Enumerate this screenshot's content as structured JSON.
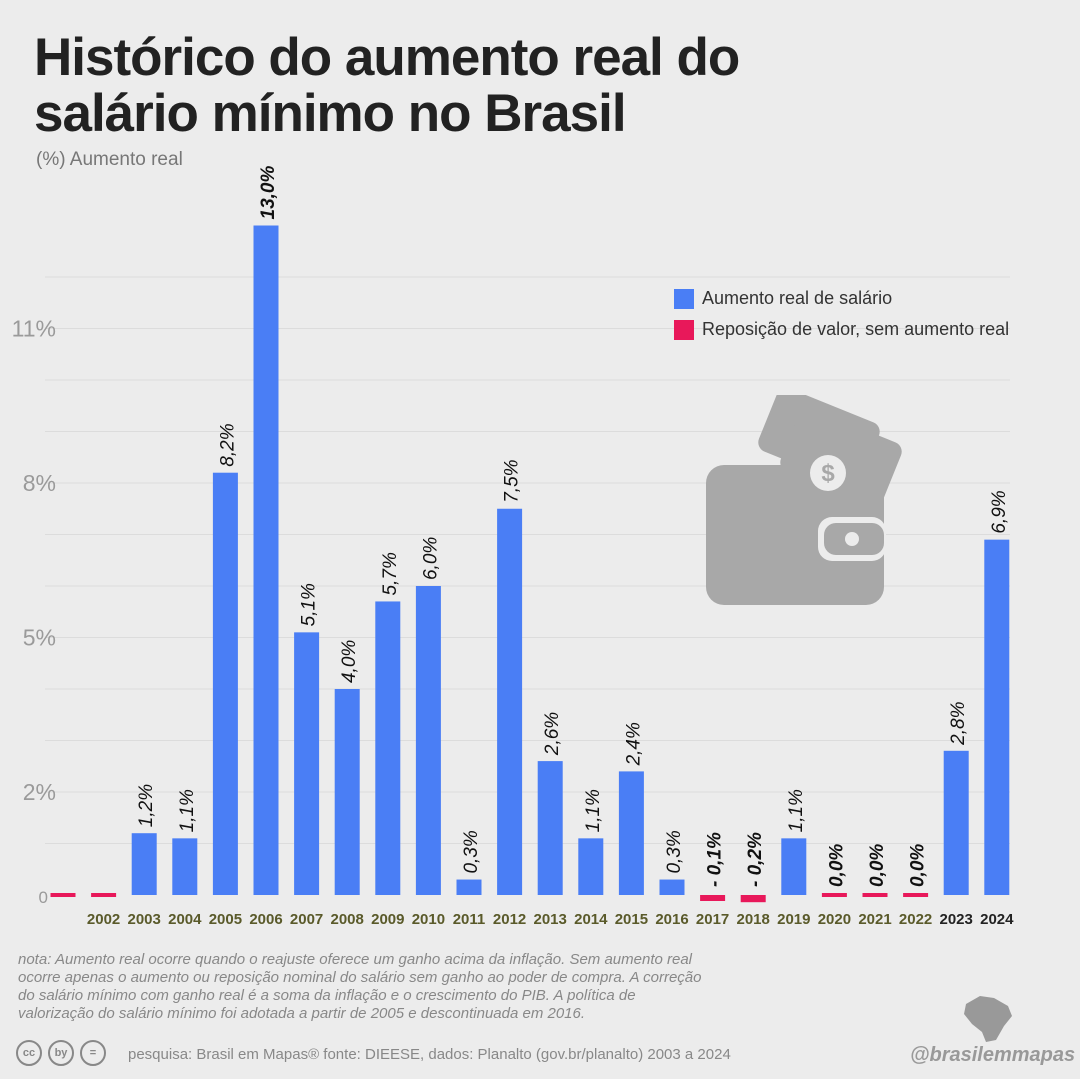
{
  "title": "Histórico do aumento real do\nsalário mínimo no Brasil",
  "subtitle": "(%) Aumento real",
  "legend": [
    {
      "label": "Aumento real de salário",
      "color": "#4a7ef5"
    },
    {
      "label": "Reposição de valor, sem aumento real",
      "color": "#e8185a"
    }
  ],
  "note": "nota: Aumento real ocorre quando o reajuste oferece um ganho acima da inflação. Sem aumento real ocorre apenas o aumento ou reposição nominal do salário sem ganho ao poder de compra. A correção do salário mínimo com ganho real é a soma da inflação e o crescimento do PIB. A política de valorização do salário mínimo foi adotada a partir de 2005 e descontinuada em 2016.",
  "source": "pesquisa: Brasil em Mapas®  fonte: DIEESE, dados: Planalto (gov.br/planalto) 2003 a 2024",
  "brand": "@brasilemmapas",
  "license": {
    "cc": "cc",
    "by": "by",
    "nd": "="
  },
  "chart_data": {
    "type": "bar",
    "categories": [
      "",
      "2002",
      "2003",
      "2004",
      "2005",
      "2006",
      "2007",
      "2008",
      "2009",
      "2010",
      "2011",
      "2012",
      "2013",
      "2014",
      "2015",
      "2016",
      "2017",
      "2018",
      "2019",
      "2020",
      "2021",
      "2022",
      "2023",
      "2024"
    ],
    "values": [
      0,
      0,
      1.2,
      1.1,
      8.2,
      13.0,
      5.1,
      4.0,
      5.7,
      6.0,
      0.3,
      7.5,
      2.6,
      1.1,
      2.4,
      0.3,
      -0.1,
      -0.2,
      1.1,
      0.0,
      0.0,
      0.0,
      2.8,
      6.9
    ],
    "labels": [
      "",
      "",
      "1,2%",
      "1,1%",
      "8,2%",
      "13,0%",
      "5,1%",
      "4,0%",
      "5,7%",
      "6,0%",
      "0,3%",
      "7,5%",
      "2,6%",
      "1,1%",
      "2,4%",
      "0,3%",
      "- 0,1%",
      "- 0,2%",
      "1,1%",
      "0,0%",
      "0,0%",
      "0,0%",
      "2,8%",
      "6,9%"
    ],
    "series_type": [
      "red",
      "red",
      "blue",
      "blue",
      "blue",
      "blue",
      "blue",
      "blue",
      "blue",
      "blue",
      "blue",
      "blue",
      "blue",
      "blue",
      "blue",
      "blue",
      "red",
      "red",
      "blue",
      "red",
      "red",
      "red",
      "blue",
      "blue"
    ],
    "yticks": [
      {
        "value": 0,
        "label": "0"
      },
      {
        "value": 2,
        "label": "2%"
      },
      {
        "value": 5,
        "label": "5%"
      },
      {
        "value": 8,
        "label": "8%"
      },
      {
        "value": 11,
        "label": "11%"
      }
    ],
    "ylim": [
      -0.3,
      13.5
    ],
    "colors": {
      "blue": "#4a7ef5",
      "red": "#e8185a",
      "label_dark": "#111",
      "year_olive": "#5a5a2a",
      "year_dark": "#222"
    },
    "grid": true
  }
}
